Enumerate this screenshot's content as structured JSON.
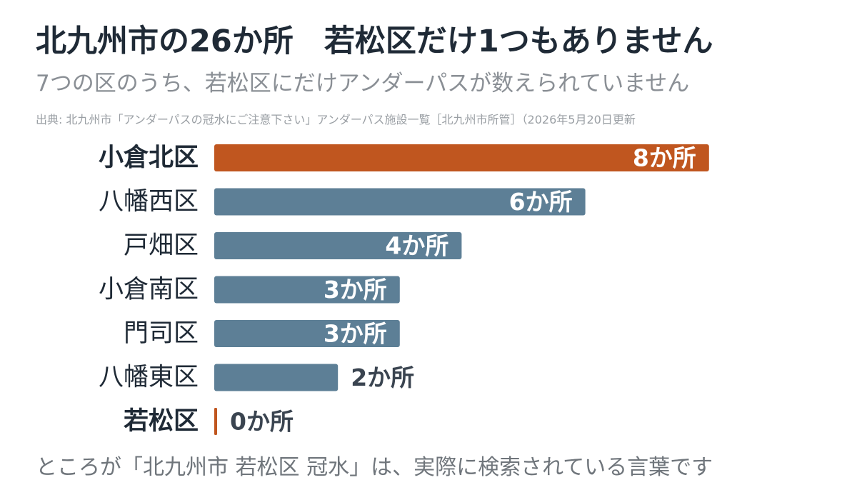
{
  "header": {
    "title": "北九州市の26か所　若松区だけ1つもありません",
    "subtitle": "7つの区のうち、若松区にだけアンダーパスが数えられていません",
    "source": "出典: 北九州市「アンダーパスの冠水にご注意下さい」アンダーパス施設一覧［北九州市所管］（2026年5月20日更新"
  },
  "footer": {
    "note": "ところが「北九州市 若松区 冠水」は、実際に検索されている言葉です"
  },
  "colors": {
    "highlight": "#c0561f",
    "base": "#5d7f96",
    "label_dark": "#1f2a36",
    "inside_label": "#ffffff"
  },
  "chart_data": {
    "type": "bar",
    "orientation": "horizontal",
    "unit_suffix": "か所",
    "xlim": [
      0,
      8
    ],
    "grid": false,
    "legend": "none",
    "categories": [
      "小倉北区",
      "八幡西区",
      "戸畑区",
      "小倉南区",
      "門司区",
      "八幡東区",
      "若松区"
    ],
    "values": [
      8,
      6,
      4,
      3,
      3,
      2,
      0
    ],
    "highlighted": [
      "小倉北区",
      "若松区"
    ]
  }
}
